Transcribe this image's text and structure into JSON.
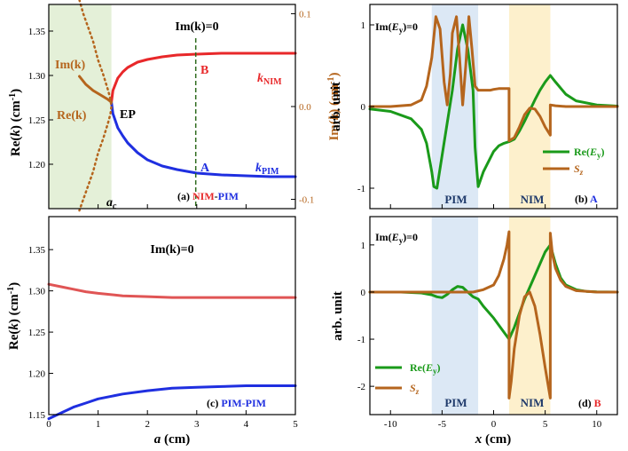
{
  "colors": {
    "red": "#e8282a",
    "blue": "#1f2fe0",
    "brown": "#b5651d",
    "green": "#1a9a1a",
    "darkgreen": "#2e6b1e",
    "light_red": "#e05555",
    "shade_green": "#e4f0d8",
    "shade_blue": "#dce8f5",
    "shade_yellow": "#fdf0cc",
    "navy": "#1f3a6b"
  },
  "chart_data": [
    {
      "panel": "a",
      "type": "line",
      "title": "(a) NIM-PIM",
      "title_parts": [
        "(a) ",
        "NIM",
        "-",
        "PIM"
      ],
      "xlabel": "",
      "ylabel": "Re(k)  (cm-1)",
      "ylabel_right": "Im(k)  (cm-1)",
      "xlim": [
        0,
        5
      ],
      "ylim": [
        1.15,
        1.38
      ],
      "ylim_right": [
        -0.11,
        0.11
      ],
      "yticks": [
        1.2,
        1.25,
        1.3,
        1.35
      ],
      "yticks_right": [
        -0.1,
        0.0,
        0.1
      ],
      "ytick_labels_right": [
        "-0.1",
        "0.0",
        "0.1"
      ],
      "shaded_x": [
        0,
        1.27
      ],
      "vline_x": 2.98,
      "vline_label": "Im(k)=0",
      "labels": {
        "ep": "EP",
        "ac": "a",
        "ac_sub": "c",
        "imk": "Im(k)",
        "rek": "Re(k)",
        "B": "B",
        "A": "A",
        "knim": "k",
        "knim_sub": "NIM",
        "kpim": "k",
        "kpim_sub": "PIM"
      },
      "series": [
        {
          "name": "k_NIM",
          "axis": "left",
          "color": "red",
          "x": [
            1.27,
            1.3,
            1.4,
            1.5,
            1.6,
            1.8,
            2.0,
            2.3,
            2.6,
            3.0,
            3.5,
            4.0,
            4.5,
            5.0
          ],
          "y": [
            1.27,
            1.283,
            1.297,
            1.304,
            1.309,
            1.315,
            1.318,
            1.321,
            1.323,
            1.324,
            1.325,
            1.325,
            1.325,
            1.325
          ]
        },
        {
          "name": "k_PIM",
          "axis": "left",
          "color": "blue",
          "x": [
            1.27,
            1.3,
            1.4,
            1.5,
            1.6,
            1.8,
            2.0,
            2.3,
            2.6,
            3.0,
            3.5,
            4.0,
            4.5,
            5.0
          ],
          "y": [
            1.27,
            1.257,
            1.241,
            1.232,
            1.224,
            1.213,
            1.205,
            1.198,
            1.194,
            1.19,
            1.188,
            1.187,
            1.186,
            1.186
          ]
        },
        {
          "name": "Re(k)",
          "axis": "left",
          "color": "brown",
          "x": [
            0.62,
            0.75,
            0.9,
            1.05,
            1.2,
            1.27
          ],
          "y": [
            1.299,
            1.29,
            1.283,
            1.278,
            1.273,
            1.27
          ]
        },
        {
          "name": "Im(k)",
          "axis": "right",
          "color": "brown",
          "style": "dotted",
          "x": [
            0.62,
            0.7,
            0.8,
            0.9,
            1.0,
            1.1,
            1.2,
            1.25,
            1.27,
            1.25,
            1.2,
            1.1,
            1.0,
            0.9,
            0.8,
            0.7,
            0.62
          ],
          "y": [
            0.115,
            0.1,
            0.085,
            0.07,
            0.05,
            0.035,
            0.018,
            0.008,
            0.0,
            -0.008,
            -0.018,
            -0.035,
            -0.05,
            -0.07,
            -0.085,
            -0.1,
            -0.112
          ]
        }
      ]
    },
    {
      "panel": "b",
      "type": "line",
      "title": "(b) A",
      "title_parts": [
        "(b) ",
        "A"
      ],
      "xlabel": "",
      "ylabel": "arb. unit",
      "xlim": [
        -12,
        12
      ],
      "ylim": [
        -1.25,
        1.25
      ],
      "yticks": [
        -1,
        0,
        1
      ],
      "header": "Im(Ey)=0",
      "region_pim": [
        -6,
        -1.5
      ],
      "region_nim": [
        1.5,
        5.5
      ],
      "region_labels": [
        "PIM",
        "NIM"
      ],
      "legend": [
        {
          "name": "Re(Ey)",
          "color": "green"
        },
        {
          "name": "Sz",
          "color": "brown"
        }
      ],
      "legend_position": "middle-right",
      "series": [
        {
          "name": "Re(Ey)",
          "color": "green",
          "x": [
            -12,
            -10,
            -8,
            -7,
            -6.5,
            -6,
            -5.8,
            -5.5,
            -5,
            -4.5,
            -4,
            -3.5,
            -3,
            -2.5,
            -2,
            -1.8,
            -1.5,
            -1,
            0,
            0.5,
            1,
            1.5,
            1.5,
            2,
            2.5,
            3,
            3.5,
            4,
            4.5,
            5,
            5.5,
            6,
            7,
            8,
            10,
            12
          ],
          "y": [
            -0.03,
            -0.06,
            -0.15,
            -0.28,
            -0.45,
            -0.8,
            -0.98,
            -1.0,
            -0.6,
            -0.2,
            0.2,
            0.7,
            1.0,
            0.7,
            0.2,
            -0.5,
            -0.98,
            -0.8,
            -0.55,
            -0.48,
            -0.45,
            -0.43,
            -0.43,
            -0.4,
            -0.3,
            -0.18,
            -0.05,
            0.08,
            0.2,
            0.3,
            0.38,
            0.3,
            0.15,
            0.07,
            0.02,
            0.005
          ]
        },
        {
          "name": "Sz",
          "color": "brown",
          "x": [
            -12,
            -10,
            -8,
            -7,
            -6.5,
            -6,
            -5.6,
            -5.2,
            -4.8,
            -4.5,
            -4.2,
            -4,
            -3.6,
            -3.3,
            -3,
            -2.7,
            -2.4,
            -2.1,
            -1.8,
            -1.5,
            -1.2,
            -0.8,
            -0.3,
            0,
            0.5,
            1,
            1.5,
            1.5,
            2,
            2.5,
            3,
            3.5,
            4,
            4.5,
            5,
            5.5,
            5.5,
            6,
            7,
            8,
            10,
            12
          ],
          "y": [
            0.0,
            0.0,
            0.02,
            0.08,
            0.25,
            0.6,
            1.1,
            0.95,
            0.3,
            0.02,
            0.4,
            0.9,
            1.1,
            0.6,
            0.02,
            0.5,
            1.1,
            0.7,
            0.25,
            0.2,
            0.2,
            0.2,
            0.2,
            0.21,
            0.22,
            0.22,
            0.22,
            -0.42,
            -0.38,
            -0.25,
            -0.1,
            -0.02,
            -0.03,
            -0.12,
            -0.25,
            -0.35,
            0.02,
            0.01,
            0.0,
            0.0,
            0.0,
            0.0
          ]
        }
      ]
    },
    {
      "panel": "c",
      "type": "line",
      "title": "(c) PIM-PIM",
      "title_parts": [
        "(c) ",
        "PIM-PIM"
      ],
      "xlabel": "a (cm)",
      "ylabel": "Re(k)  (cm-1)",
      "xlim": [
        0,
        5
      ],
      "ylim": [
        1.15,
        1.39
      ],
      "xticks": [
        0,
        1,
        2,
        3,
        4,
        5
      ],
      "yticks": [
        1.15,
        1.2,
        1.25,
        1.3,
        1.35
      ],
      "header": "Im(k)=0",
      "series": [
        {
          "name": "upper",
          "color": "light_red",
          "x": [
            0,
            0.25,
            0.5,
            0.75,
            1.0,
            1.5,
            2.0,
            2.5,
            3.0,
            3.5,
            4.0,
            5.0
          ],
          "y": [
            1.308,
            1.305,
            1.302,
            1.299,
            1.297,
            1.294,
            1.293,
            1.292,
            1.292,
            1.292,
            1.292,
            1.292
          ]
        },
        {
          "name": "lower",
          "color": "blue",
          "x": [
            0,
            0.25,
            0.5,
            0.75,
            1.0,
            1.5,
            2.0,
            2.5,
            3.0,
            3.5,
            4.0,
            5.0
          ],
          "y": [
            1.145,
            1.152,
            1.159,
            1.164,
            1.169,
            1.175,
            1.179,
            1.182,
            1.183,
            1.184,
            1.185,
            1.185
          ]
        }
      ]
    },
    {
      "panel": "d",
      "type": "line",
      "title": "(d) B",
      "title_parts": [
        "(d) ",
        "B"
      ],
      "xlabel": "x (cm)",
      "ylabel": "arb. unit",
      "xlim": [
        -12,
        12
      ],
      "ylim": [
        -2.6,
        1.6
      ],
      "xticks": [
        -10,
        -5,
        0,
        5,
        10
      ],
      "yticks": [
        -2,
        -1,
        0,
        1
      ],
      "header": "Im(Ey)=0",
      "region_pim": [
        -6,
        -1.5
      ],
      "region_nim": [
        1.5,
        5.5
      ],
      "region_labels": [
        "PIM",
        "NIM"
      ],
      "legend": [
        {
          "name": "Re(Ey)",
          "color": "green"
        },
        {
          "name": "Sz",
          "color": "brown"
        }
      ],
      "legend_position": "lower-left",
      "series": [
        {
          "name": "Re(Ey)",
          "color": "green",
          "x": [
            -12,
            -9,
            -7,
            -6,
            -5.5,
            -5,
            -4.5,
            -4,
            -3.5,
            -3,
            -2.5,
            -2,
            -1.5,
            -1,
            0,
            1,
            1.5,
            2,
            2.5,
            3,
            3.5,
            4,
            4.5,
            5,
            5.5,
            6,
            6.5,
            7,
            8,
            9,
            10,
            12
          ],
          "y": [
            0.0,
            0.0,
            -0.02,
            -0.06,
            -0.1,
            -0.12,
            -0.05,
            0.05,
            0.12,
            0.1,
            0.0,
            -0.1,
            -0.15,
            -0.3,
            -0.55,
            -0.85,
            -1.0,
            -0.75,
            -0.45,
            -0.15,
            0.1,
            0.35,
            0.6,
            0.85,
            1.0,
            0.6,
            0.3,
            0.15,
            0.05,
            0.015,
            0.005,
            0.0
          ]
        },
        {
          "name": "Sz",
          "color": "brown",
          "x": [
            -12,
            -8,
            -6,
            -4,
            -2,
            -1,
            0,
            0.5,
            1.0,
            1.3,
            1.5,
            1.5,
            1.7,
            2,
            2.5,
            3,
            3.5,
            4,
            4.5,
            5,
            5.5,
            5.5,
            5.7,
            6,
            6.5,
            7,
            8,
            10,
            12
          ],
          "y": [
            0.0,
            0.0,
            0.0,
            0.0,
            0.0,
            0.05,
            0.15,
            0.35,
            0.7,
            1.0,
            1.28,
            -2.25,
            -1.9,
            -1.2,
            -0.5,
            -0.1,
            0.0,
            -0.3,
            -0.9,
            -1.6,
            -2.25,
            1.25,
            0.8,
            0.5,
            0.25,
            0.12,
            0.03,
            0.0,
            0.0
          ]
        }
      ]
    }
  ]
}
